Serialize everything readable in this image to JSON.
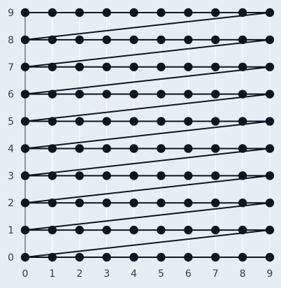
{
  "chart_data": {
    "type": "line",
    "title": "",
    "xlabel": "",
    "ylabel": "",
    "xlim": [
      0,
      9
    ],
    "ylim": [
      0,
      9
    ],
    "xticks": [
      "0",
      "1",
      "2",
      "3",
      "4",
      "5",
      "6",
      "7",
      "8",
      "9"
    ],
    "yticks": [
      "0",
      "1",
      "2",
      "3",
      "4",
      "5",
      "6",
      "7",
      "8",
      "9"
    ],
    "grid": "vertical",
    "legend": "none",
    "series": [
      {
        "x": [
          0,
          1,
          2,
          3,
          4,
          5,
          6,
          7,
          8,
          9,
          0,
          1,
          2,
          3,
          4,
          5,
          6,
          7,
          8,
          9,
          0,
          1,
          2,
          3,
          4,
          5,
          6,
          7,
          8,
          9,
          0,
          1,
          2,
          3,
          4,
          5,
          6,
          7,
          8,
          9,
          0,
          1,
          2,
          3,
          4,
          5,
          6,
          7,
          8,
          9,
          0,
          1,
          2,
          3,
          4,
          5,
          6,
          7,
          8,
          9,
          0,
          1,
          2,
          3,
          4,
          5,
          6,
          7,
          8,
          9,
          0,
          1,
          2,
          3,
          4,
          5,
          6,
          7,
          8,
          9,
          0,
          1,
          2,
          3,
          4,
          5,
          6,
          7,
          8,
          9,
          0,
          1,
          2,
          3,
          4,
          5,
          6,
          7,
          8,
          9
        ],
        "y": [
          9,
          9,
          9,
          9,
          9,
          9,
          9,
          9,
          9,
          9,
          8,
          8,
          8,
          8,
          8,
          8,
          8,
          8,
          8,
          8,
          7,
          7,
          7,
          7,
          7,
          7,
          7,
          7,
          7,
          7,
          6,
          6,
          6,
          6,
          6,
          6,
          6,
          6,
          6,
          6,
          5,
          5,
          5,
          5,
          5,
          5,
          5,
          5,
          5,
          5,
          4,
          4,
          4,
          4,
          4,
          4,
          4,
          4,
          4,
          4,
          3,
          3,
          3,
          3,
          3,
          3,
          3,
          3,
          3,
          3,
          2,
          2,
          2,
          2,
          2,
          2,
          2,
          2,
          2,
          2,
          1,
          1,
          1,
          1,
          1,
          1,
          1,
          1,
          1,
          1,
          0,
          0,
          0,
          0,
          0,
          0,
          0,
          0,
          0,
          0
        ]
      }
    ],
    "colors": {
      "background": "#e6eef5",
      "line": "#0c1620",
      "marker": "#0c1620",
      "grid": "#ffffff",
      "axis": "#33404a"
    }
  }
}
